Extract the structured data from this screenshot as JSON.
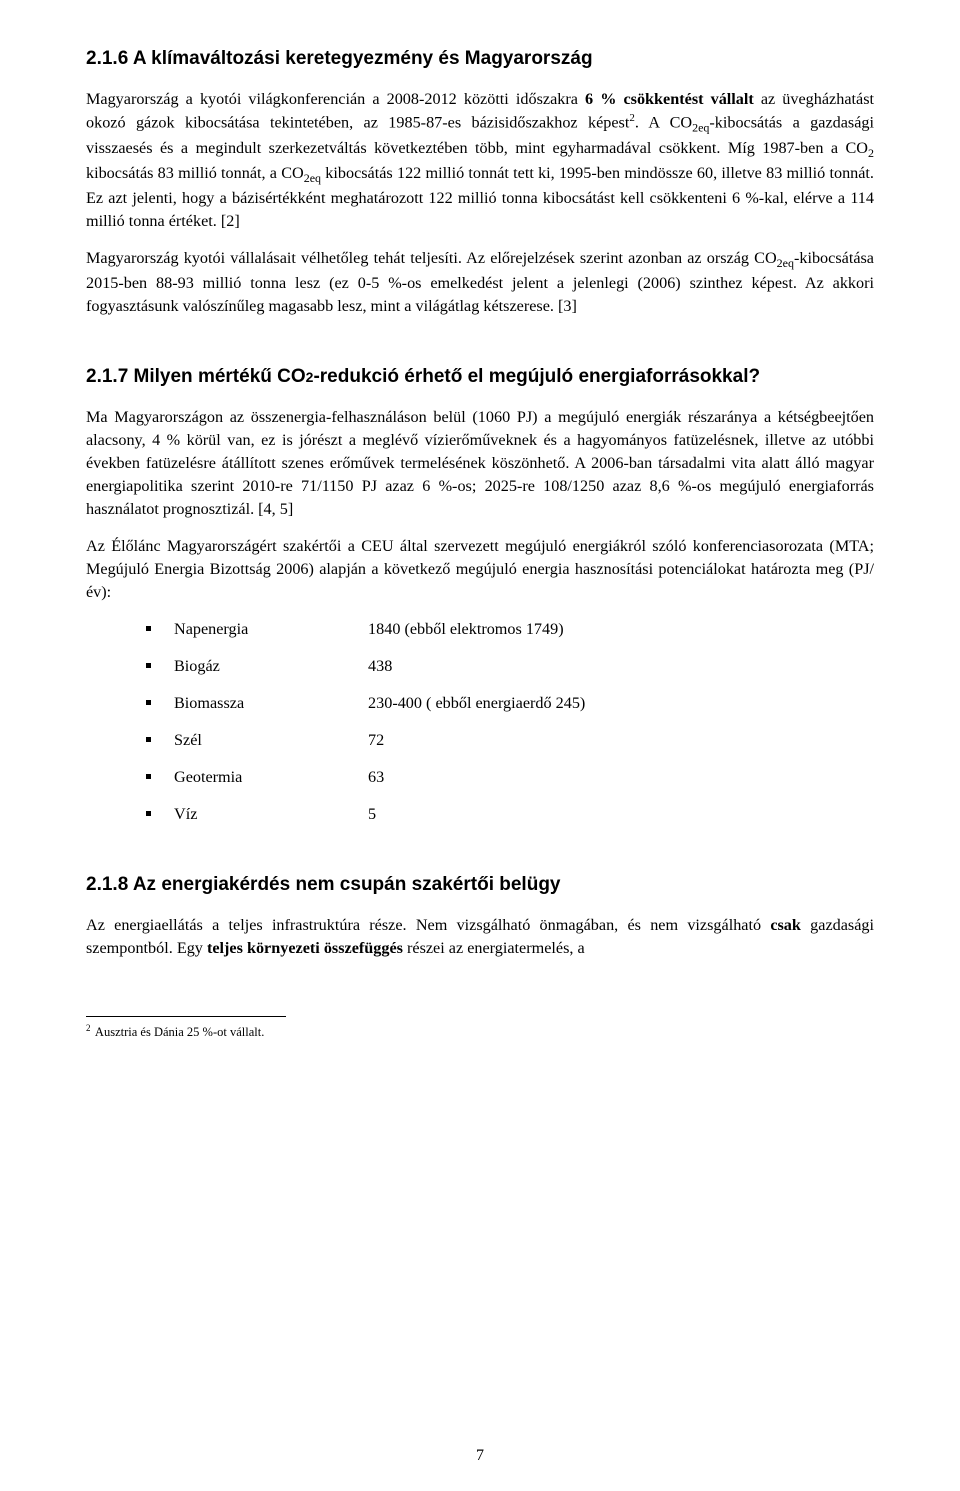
{
  "section_2_1_6": {
    "heading": "2.1.6 A klímaváltozási keretegyezmény és Magyarország",
    "para1_a": "Magyarország a kyotói világkonferencián a 2008-2012 közötti időszakra ",
    "para1_bold": "6 % csökkentést vállalt",
    "para1_b": " az üvegházhatást okozó gázok kibocsátása tekintetében, az 1985-87-es bázisidőszakhoz képest",
    "para1_c": ". A CO",
    "para1_sub1": "2eq",
    "para1_d": "-kibocsátás a gazdasági visszaesés és a megindult szerkezetváltás következtében több, mint egyharmadával csökkent. Míg 1987-ben a CO",
    "para1_sub2": "2",
    "para1_e": " kibocsátás 83 millió tonnát, a CO",
    "para1_sub3": "2eq",
    "para1_f": " kibocsátás 122 millió tonnát tett ki, 1995-ben mindössze 60, illetve 83 millió tonnát. Ez azt jelenti, hogy a bázisértékként meghatározott 122 millió tonna kibocsátást kell csökkenteni 6 %-kal, elérve a 114 millió tonna értéket. [2]",
    "para2_a": "Magyarország kyotói vállalásait vélhetőleg tehát teljesíti. Az előrejelzések szerint azonban az ország CO",
    "para2_sub1": "2eq",
    "para2_b": "-kibocsátása 2015-ben 88-93 millió tonna lesz (ez 0-5 %-os emelkedést jelent a jelenlegi (2006) szinthez képest. Az akkori fogyasztásunk valószínűleg magasabb lesz, mint a világátlag kétszerese. [3]"
  },
  "section_2_1_7": {
    "heading_a": "2.1.7 Milyen mértékű CO",
    "heading_sub": "2",
    "heading_b": "-redukció érhető el megújuló energiaforrásokkal?",
    "para1": "Ma Magyarországon az összenergia-felhasználáson belül (1060 PJ) a megújuló energiák részaránya a kétségbeejtően alacsony, 4 % körül van, ez is jórészt a meglévő vízierőműveknek és a hagyományos fatüzelésnek, illetve az utóbbi években fatüzelésre átállított szenes erőművek termelésének köszönhető. A 2006-ban társadalmi vita alatt álló magyar energiapolitika szerint 2010-re 71/1150 PJ azaz 6 %-os; 2025-re 108/1250 azaz 8,6 %-os megújuló energiaforrás használatot prognosztizál. [4, 5]",
    "para2": "Az Élőlánc Magyarországért szakértői a CEU által szervezett megújuló energiákról szóló konferenciasorozata (MTA; Megújuló Energia Bizottság 2006) alapján a következő megújuló energia hasznosítási potenciálokat határozta meg (PJ/év):",
    "items": [
      {
        "label": "Napenergia",
        "value": "1840 (ebből elektromos 1749)"
      },
      {
        "label": "Biogáz",
        "value": "438"
      },
      {
        "label": "Biomassza",
        "value": "230-400 ( ebből energiaerdő 245)"
      },
      {
        "label": "Szél",
        "value": "72"
      },
      {
        "label": "Geotermia",
        "value": "63"
      },
      {
        "label": "Víz",
        "value": "5"
      }
    ]
  },
  "section_2_1_8": {
    "heading": "2.1.8 Az energiakérdés nem csupán szakértői belügy",
    "para1_a": "Az energiaellátás a teljes infrastruktúra része. Nem vizsgálható önmagában, és nem vizsgálható ",
    "para1_bold1": "csak",
    "para1_b": " gazdasági szempontból. Egy ",
    "para1_bold2": "teljes környezeti összefüggés",
    "para1_c": " részei az energiatermelés, a"
  },
  "footnote": {
    "num": "2",
    "text": " Ausztria és Dánia 25 %-ot vállalt."
  },
  "page_number": "7"
}
